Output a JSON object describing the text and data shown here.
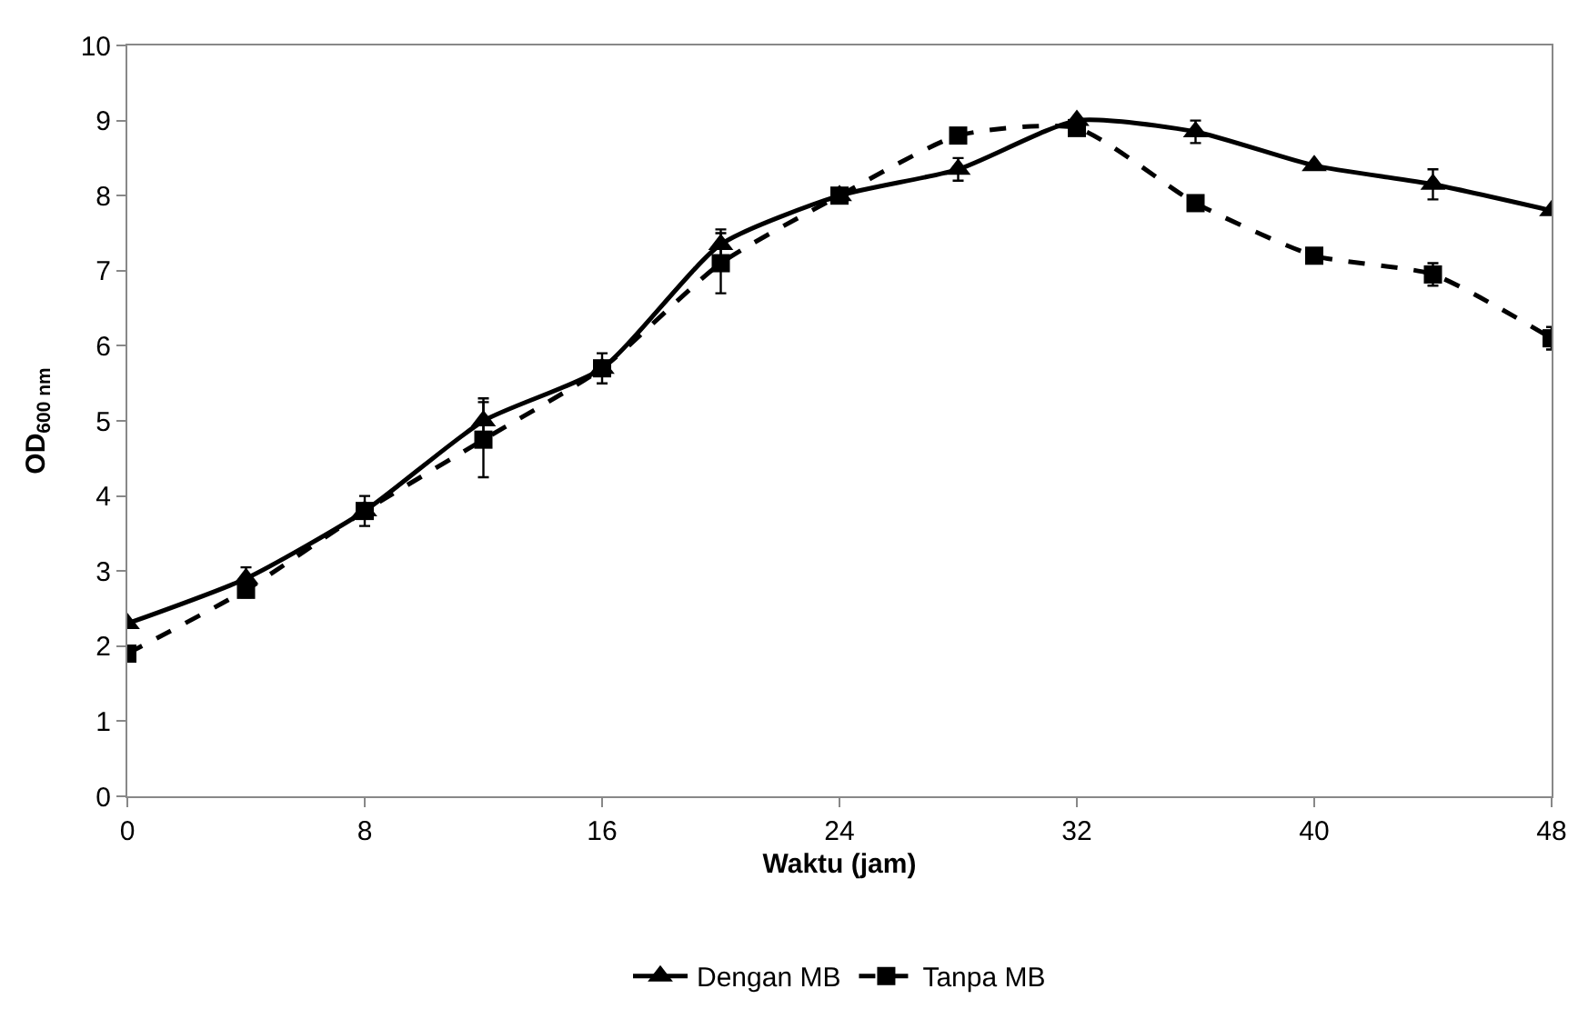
{
  "chart_data": {
    "type": "line",
    "xlabel": "Waktu (jam)",
    "ylabel": "OD$_{600 nm}$",
    "x": [
      0,
      4,
      8,
      12,
      16,
      20,
      24,
      28,
      32,
      36,
      40,
      44,
      48
    ],
    "xlim": [
      0,
      48
    ],
    "xticks": [
      0,
      8,
      16,
      24,
      32,
      40,
      48
    ],
    "ylim": [
      0,
      10
    ],
    "yticks": [
      0,
      1,
      2,
      3,
      4,
      5,
      6,
      7,
      8,
      9,
      10
    ],
    "grid": false,
    "legend": "bottom",
    "series": [
      {
        "name": "Dengan MB",
        "color": "#000000",
        "marker": "triangle",
        "line_style": "solid",
        "values": [
          2.3,
          2.9,
          3.8,
          5.0,
          5.7,
          7.35,
          8.0,
          8.35,
          9.0,
          8.85,
          8.4,
          8.15,
          7.8
        ],
        "errors": [
          null,
          0.15,
          0.2,
          0.3,
          0.2,
          0.2,
          null,
          0.15,
          null,
          0.15,
          null,
          0.2,
          null
        ]
      },
      {
        "name": "Tanpa MB",
        "color": "#000000",
        "marker": "square",
        "line_style": "dashed",
        "values": [
          1.9,
          2.75,
          3.8,
          4.75,
          5.7,
          7.1,
          8.0,
          8.8,
          8.9,
          7.9,
          7.2,
          6.95,
          6.1
        ],
        "errors": [
          null,
          0.1,
          null,
          0.5,
          null,
          0.4,
          null,
          null,
          null,
          null,
          null,
          0.15,
          0.15
        ]
      }
    ]
  }
}
